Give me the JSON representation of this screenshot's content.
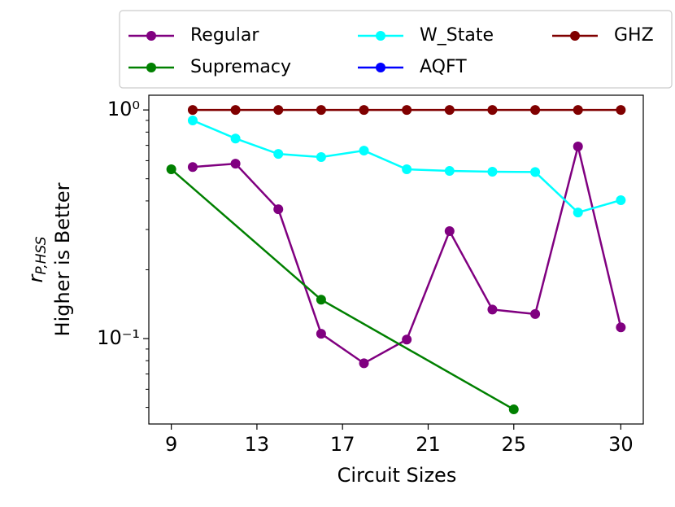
{
  "chart_data": {
    "type": "line",
    "xlabel": "Circuit Sizes",
    "ylabel_math": {
      "base": "r",
      "sub": "P,HSS"
    },
    "ylabel": "Higher is Better",
    "xlim": [
      7.95,
      31.05
    ],
    "xticks": [
      9,
      13,
      17,
      21,
      25,
      30
    ],
    "ylim": [
      0.0423,
      1.16
    ],
    "yscale": "log",
    "yticks": [
      {
        "value": 0.1,
        "label": "10⁻¹"
      },
      {
        "value": 1,
        "label": "10⁰"
      }
    ],
    "yminorticks": [
      0.05,
      0.06,
      0.07,
      0.08,
      0.09,
      0.2,
      0.3,
      0.4,
      0.5,
      0.6,
      0.7,
      0.8,
      0.9
    ],
    "grid": false,
    "legend": "top",
    "series": [
      {
        "name": "Regular",
        "color": "#800080",
        "x": [
          10,
          12,
          14,
          16,
          18,
          20,
          22,
          24,
          26,
          28,
          30
        ],
        "values": [
          0.563,
          0.582,
          0.368,
          0.105,
          0.078,
          0.099,
          0.295,
          0.134,
          0.128,
          0.692,
          0.112
        ]
      },
      {
        "name": "Supremacy",
        "color": "#008000",
        "x": [
          9,
          16,
          25
        ],
        "values": [
          0.55,
          0.148,
          0.049
        ]
      },
      {
        "name": "W_State",
        "color": "#00ffff",
        "x": [
          10,
          12,
          14,
          16,
          18,
          20,
          22,
          24,
          26,
          28,
          30
        ],
        "values": [
          0.9,
          0.75,
          0.642,
          0.622,
          0.664,
          0.55,
          0.541,
          0.537,
          0.535,
          0.356,
          0.403
        ]
      },
      {
        "name": "AQFT",
        "color": "#0000ff",
        "x": [],
        "values": []
      },
      {
        "name": "GHZ",
        "color": "#800000",
        "x": [
          10,
          12,
          14,
          16,
          18,
          20,
          22,
          24,
          26,
          28,
          30
        ],
        "values": [
          1,
          1,
          1,
          1,
          1,
          1,
          1,
          1,
          1,
          1,
          1
        ]
      }
    ]
  }
}
